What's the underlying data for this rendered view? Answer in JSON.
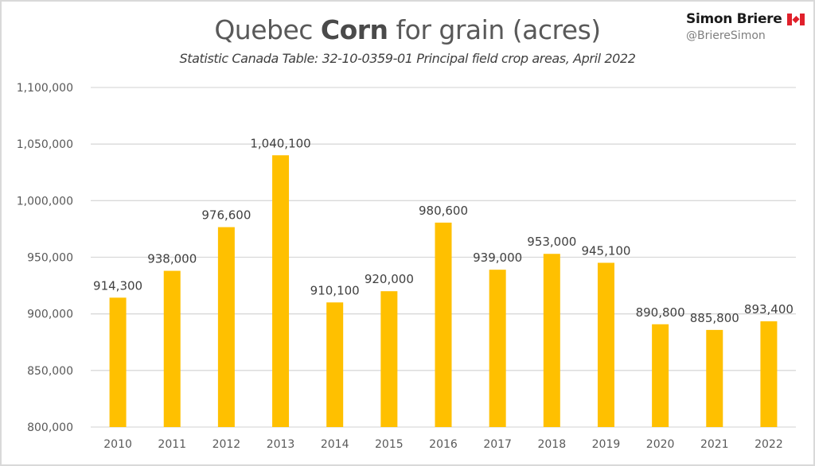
{
  "header": {
    "title_prefix": "Quebec ",
    "title_bold": "Corn",
    "title_suffix": " for grain (acres)",
    "subtitle": "Statistic Canada Table: 32-10-0359-01 Principal field crop areas, April 2022",
    "author_name": "Simon Briere",
    "author_handle": "@BriereSimon",
    "author_icon": "canada-flag-icon"
  },
  "colors": {
    "bar": "#FFC000",
    "grid": "#D9D9D9",
    "axis_text": "#595959",
    "label_text": "#404040"
  },
  "chart_data": {
    "type": "bar",
    "title": "Quebec Corn for grain (acres)",
    "subtitle": "Statistic Canada Table: 32-10-0359-01 Principal field crop areas, April 2022",
    "xlabel": "",
    "ylabel": "",
    "categories": [
      "2010",
      "2011",
      "2012",
      "2013",
      "2014",
      "2015",
      "2016",
      "2017",
      "2018",
      "2019",
      "2020",
      "2021",
      "2022"
    ],
    "values": [
      914300,
      938000,
      976600,
      1040100,
      910100,
      920000,
      980600,
      939000,
      953000,
      945100,
      890800,
      885800,
      893400
    ],
    "data_labels": [
      "914,300",
      "938,000",
      "976,600",
      "1,040,100",
      "910,100",
      "920,000",
      "980,600",
      "939,000",
      "953,000",
      "945,100",
      "890,800",
      "885,800",
      "893,400"
    ],
    "ylim": [
      800000,
      1100000
    ],
    "yticks": [
      800000,
      850000,
      900000,
      950000,
      1000000,
      1050000,
      1100000
    ],
    "ytick_labels": [
      "800,000",
      "850,000",
      "900,000",
      "950,000",
      "1,000,000",
      "1,050,000",
      "1,100,000"
    ],
    "grid": true,
    "legend": "none"
  }
}
